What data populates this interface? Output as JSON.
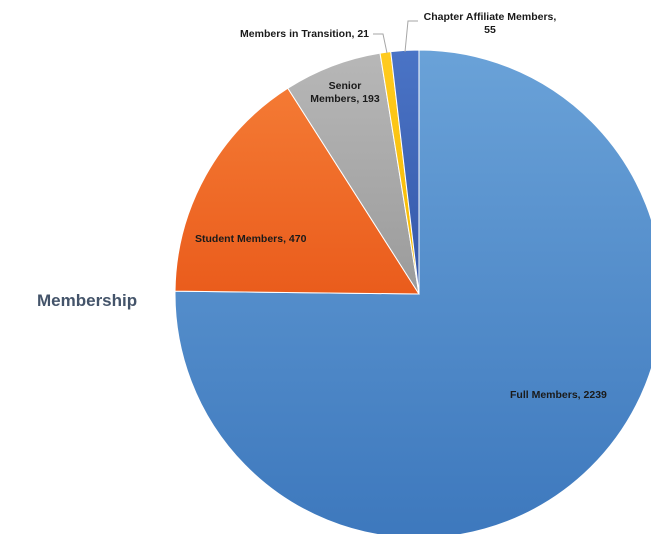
{
  "panel": {
    "title": "Membership"
  },
  "chart_data": {
    "type": "pie",
    "slices": [
      {
        "label": "Full Members",
        "value": 2239,
        "color": "#4a86c8",
        "text": "Full Members, 2239"
      },
      {
        "label": "Student Members",
        "value": 470,
        "color": "#f06a24",
        "text": "Student Members, 470"
      },
      {
        "label": "Senior Members",
        "value": 193,
        "color": "#a5a5a5",
        "text_lines": [
          "Senior",
          "Members, 193"
        ]
      },
      {
        "label": "Members in Transition",
        "value": 21,
        "color": "#ffc000",
        "text": "Members in Transition, 21"
      },
      {
        "label": "Chapter Affiliate Members",
        "value": 55,
        "color": "#3f66b8",
        "text_lines": [
          "Chapter Affiliate Members,",
          "55"
        ]
      }
    ],
    "start_angle_deg": 0,
    "direction": "clockwise",
    "labels": "outside-and-inside data labels with category name and value"
  }
}
